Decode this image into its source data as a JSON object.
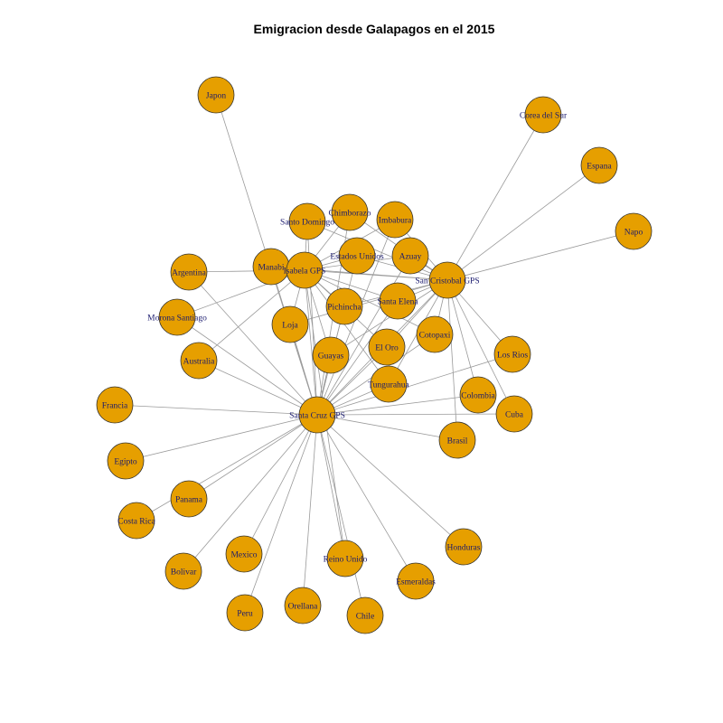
{
  "title": "Emigracion desde Galapagos en el 2015",
  "colors": {
    "node_fill": "#E69F00",
    "node_stroke": "#333333",
    "edge": "#9A9A9A",
    "label": "#1A1A6E",
    "title": "#000000"
  },
  "nodes": [
    {
      "id": "japon",
      "label": "Japon"
    },
    {
      "id": "corea",
      "label": "Corea del Sur"
    },
    {
      "id": "espana",
      "label": "Espana"
    },
    {
      "id": "napo",
      "label": "Napo"
    },
    {
      "id": "chimborazo",
      "label": "Chimborazo"
    },
    {
      "id": "imbabura",
      "label": "Imbabura"
    },
    {
      "id": "santo-domingo",
      "label": "Santo Domingo"
    },
    {
      "id": "estados-unidos",
      "label": "Estados Unidos"
    },
    {
      "id": "azuay",
      "label": "Azuay"
    },
    {
      "id": "argentina",
      "label": "Argentina"
    },
    {
      "id": "manabi",
      "label": "Manabi"
    },
    {
      "id": "isabela",
      "label": "Isabela GPS"
    },
    {
      "id": "san-cristobal",
      "label": "San Cristobal GPS"
    },
    {
      "id": "morona",
      "label": "Morona Santiago"
    },
    {
      "id": "pichincha",
      "label": "Pichincha"
    },
    {
      "id": "santa-elena",
      "label": "Santa Elena"
    },
    {
      "id": "loja",
      "label": "Loja"
    },
    {
      "id": "cotopaxi",
      "label": "Cotopaxi"
    },
    {
      "id": "australia",
      "label": "Australia"
    },
    {
      "id": "guayas",
      "label": "Guayas"
    },
    {
      "id": "el-oro",
      "label": "El Oro"
    },
    {
      "id": "los-rios",
      "label": "Los Rios"
    },
    {
      "id": "tungurahua",
      "label": "Tungurahua"
    },
    {
      "id": "francia",
      "label": "Francia"
    },
    {
      "id": "colombia",
      "label": "Colombia"
    },
    {
      "id": "santa-cruz",
      "label": "Santa Cruz GPS"
    },
    {
      "id": "cuba",
      "label": "Cuba"
    },
    {
      "id": "brasil",
      "label": "Brasil"
    },
    {
      "id": "egipto",
      "label": "Egipto"
    },
    {
      "id": "panama",
      "label": "Panama"
    },
    {
      "id": "costa-rica",
      "label": "Costa Rica"
    },
    {
      "id": "honduras",
      "label": "Honduras"
    },
    {
      "id": "mexico",
      "label": "Mexico"
    },
    {
      "id": "reino-unido",
      "label": "Reino Unido"
    },
    {
      "id": "bolivar",
      "label": "Bolivar"
    },
    {
      "id": "esmeraldas",
      "label": "Esmeraldas"
    },
    {
      "id": "orellana",
      "label": "Orellana"
    },
    {
      "id": "peru",
      "label": "Peru"
    },
    {
      "id": "chile",
      "label": "Chile"
    }
  ],
  "edges": [
    [
      "santa-cruz",
      "japon"
    ],
    [
      "santa-cruz",
      "francia"
    ],
    [
      "santa-cruz",
      "egipto"
    ],
    [
      "santa-cruz",
      "panama"
    ],
    [
      "santa-cruz",
      "costa-rica"
    ],
    [
      "santa-cruz",
      "bolivar"
    ],
    [
      "santa-cruz",
      "mexico"
    ],
    [
      "santa-cruz",
      "peru"
    ],
    [
      "santa-cruz",
      "orellana"
    ],
    [
      "santa-cruz",
      "reino-unido"
    ],
    [
      "santa-cruz",
      "chile"
    ],
    [
      "santa-cruz",
      "esmeraldas"
    ],
    [
      "santa-cruz",
      "honduras"
    ],
    [
      "santa-cruz",
      "brasil"
    ],
    [
      "santa-cruz",
      "cuba"
    ],
    [
      "santa-cruz",
      "colombia"
    ],
    [
      "santa-cruz",
      "los-rios"
    ],
    [
      "santa-cruz",
      "tungurahua"
    ],
    [
      "santa-cruz",
      "el-oro"
    ],
    [
      "santa-cruz",
      "guayas"
    ],
    [
      "santa-cruz",
      "loja"
    ],
    [
      "santa-cruz",
      "australia"
    ],
    [
      "santa-cruz",
      "morona"
    ],
    [
      "santa-cruz",
      "argentina"
    ],
    [
      "santa-cruz",
      "manabi"
    ],
    [
      "santa-cruz",
      "isabela"
    ],
    [
      "santa-cruz",
      "santo-domingo"
    ],
    [
      "santa-cruz",
      "chimborazo"
    ],
    [
      "santa-cruz",
      "imbabura"
    ],
    [
      "santa-cruz",
      "estados-unidos"
    ],
    [
      "santa-cruz",
      "azuay"
    ],
    [
      "santa-cruz",
      "pichincha"
    ],
    [
      "santa-cruz",
      "santa-elena"
    ],
    [
      "santa-cruz",
      "cotopaxi"
    ],
    [
      "santa-cruz",
      "san-cristobal"
    ],
    [
      "san-cristobal",
      "corea"
    ],
    [
      "san-cristobal",
      "espana"
    ],
    [
      "san-cristobal",
      "napo"
    ],
    [
      "san-cristobal",
      "azuay"
    ],
    [
      "san-cristobal",
      "imbabura"
    ],
    [
      "san-cristobal",
      "chimborazo"
    ],
    [
      "san-cristobal",
      "estados-unidos"
    ],
    [
      "san-cristobal",
      "santo-domingo"
    ],
    [
      "san-cristobal",
      "isabela"
    ],
    [
      "san-cristobal",
      "manabi"
    ],
    [
      "san-cristobal",
      "pichincha"
    ],
    [
      "san-cristobal",
      "santa-elena"
    ],
    [
      "san-cristobal",
      "guayas"
    ],
    [
      "san-cristobal",
      "el-oro"
    ],
    [
      "san-cristobal",
      "cotopaxi"
    ],
    [
      "san-cristobal",
      "tungurahua"
    ],
    [
      "san-cristobal",
      "los-rios"
    ],
    [
      "san-cristobal",
      "colombia"
    ],
    [
      "san-cristobal",
      "cuba"
    ],
    [
      "san-cristobal",
      "brasil"
    ],
    [
      "san-cristobal",
      "loja"
    ],
    [
      "isabela",
      "argentina"
    ],
    [
      "isabela",
      "morona"
    ],
    [
      "isabela",
      "australia"
    ],
    [
      "isabela",
      "santo-domingo"
    ],
    [
      "isabela",
      "chimborazo"
    ],
    [
      "isabela",
      "imbabura"
    ],
    [
      "isabela",
      "estados-unidos"
    ],
    [
      "isabela",
      "azuay"
    ],
    [
      "isabela",
      "manabi"
    ],
    [
      "isabela",
      "pichincha"
    ],
    [
      "isabela",
      "santa-elena"
    ],
    [
      "isabela",
      "loja"
    ],
    [
      "isabela",
      "guayas"
    ],
    [
      "isabela",
      "el-oro"
    ],
    [
      "isabela",
      "cotopaxi"
    ],
    [
      "isabela",
      "tungurahua"
    ],
    [
      "isabela",
      "reino-unido"
    ]
  ]
}
